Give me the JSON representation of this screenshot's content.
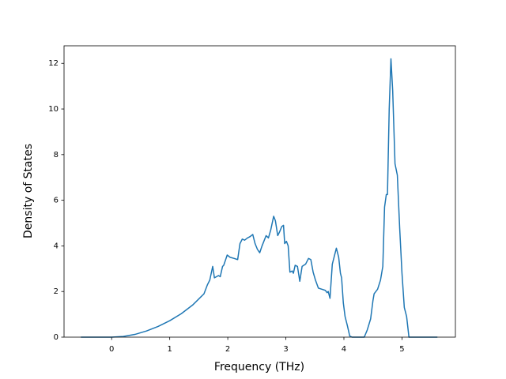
{
  "chart_data": {
    "type": "line",
    "xlabel": "Frequency (THz)",
    "ylabel": "Density of States",
    "x": [
      -0.53,
      0,
      0.2,
      0.4,
      0.6,
      0.8,
      1.0,
      1.2,
      1.4,
      1.59,
      1.65,
      1.69,
      1.74,
      1.77,
      1.84,
      1.87,
      1.91,
      1.93,
      1.99,
      2.04,
      2.11,
      2.17,
      2.21,
      2.25,
      2.29,
      2.34,
      2.38,
      2.43,
      2.47,
      2.51,
      2.55,
      2.59,
      2.66,
      2.7,
      2.74,
      2.79,
      2.82,
      2.86,
      2.89,
      2.93,
      2.96,
      2.98,
      3.01,
      3.04,
      3.07,
      3.11,
      3.13,
      3.16,
      3.2,
      3.24,
      3.28,
      3.34,
      3.39,
      3.43,
      3.47,
      3.51,
      3.56,
      3.62,
      3.68,
      3.71,
      3.73,
      3.76,
      3.8,
      3.87,
      3.91,
      3.94,
      3.96,
      3.99,
      4.02,
      4.06,
      4.1,
      4.14,
      4.35,
      4.4,
      4.46,
      4.5,
      4.52,
      4.58,
      4.63,
      4.67,
      4.7,
      4.73,
      4.75,
      4.78,
      4.81,
      4.84,
      4.88,
      4.92,
      4.96,
      5.0,
      5.04,
      5.08,
      5.12,
      5.61
    ],
    "series": [
      {
        "color": "#1f77b4",
        "values": [
          0,
          0,
          0.03,
          0.12,
          0.27,
          0.47,
          0.72,
          1.03,
          1.42,
          1.9,
          2.3,
          2.5,
          3.1,
          2.6,
          2.7,
          2.65,
          3.1,
          3.15,
          3.6,
          3.5,
          3.45,
          3.4,
          4.1,
          4.3,
          4.25,
          4.35,
          4.4,
          4.5,
          4.1,
          3.85,
          3.7,
          4.0,
          4.45,
          4.35,
          4.7,
          5.3,
          5.1,
          4.45,
          4.6,
          4.85,
          4.9,
          4.1,
          4.2,
          4.0,
          2.85,
          2.9,
          2.8,
          3.15,
          3.1,
          2.45,
          3.1,
          3.2,
          3.45,
          3.4,
          2.85,
          2.5,
          2.15,
          2.1,
          2.05,
          1.95,
          2.0,
          1.7,
          3.2,
          3.9,
          3.5,
          2.8,
          2.6,
          1.5,
          0.9,
          0.5,
          0.05,
          0,
          0,
          0.3,
          0.8,
          1.6,
          1.9,
          2.1,
          2.5,
          3.1,
          5.7,
          6.25,
          6.25,
          10.0,
          12.2,
          10.8,
          7.6,
          7.1,
          4.8,
          2.8,
          1.3,
          0.9,
          0,
          0
        ]
      }
    ],
    "xlim": [
      -0.82,
      5.92
    ],
    "ylim": [
      0,
      12.77
    ],
    "xticks": [
      0,
      1,
      2,
      3,
      4,
      5
    ],
    "yticks": [
      0,
      2,
      4,
      6,
      8,
      10,
      12
    ]
  }
}
